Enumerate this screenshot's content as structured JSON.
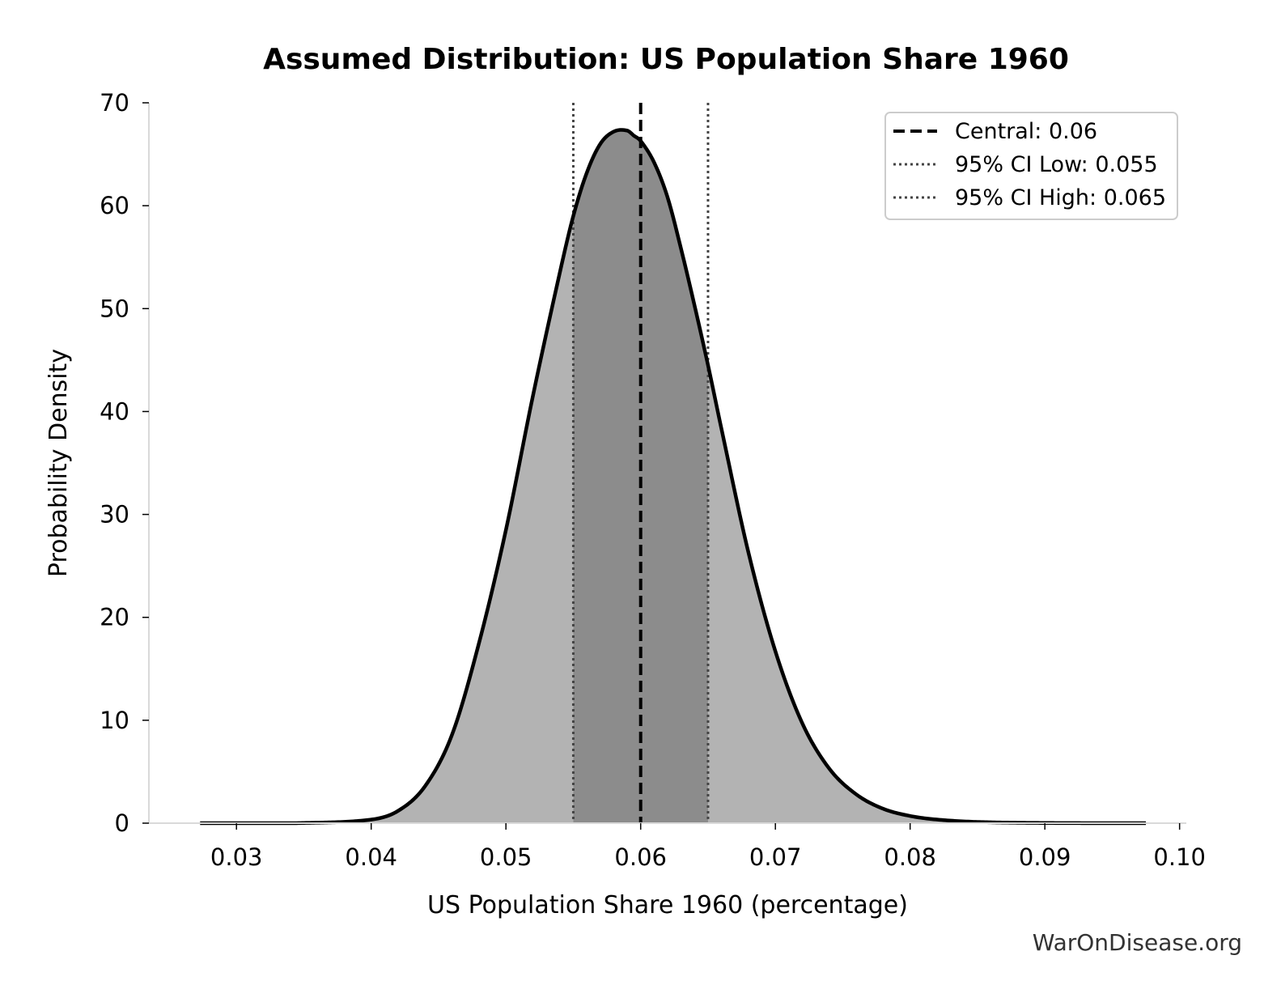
{
  "chart_data": {
    "type": "area",
    "title": "Assumed Distribution: US Population Share 1960",
    "xlabel": "US Population Share 1960 (percentage)",
    "ylabel": "Probability Density",
    "xlim": [
      0.0235,
      0.1005
    ],
    "ylim": [
      0,
      70
    ],
    "x_ticks": [
      "0.03",
      "0.04",
      "0.05",
      "0.06",
      "0.07",
      "0.08",
      "0.09",
      "0.10"
    ],
    "y_ticks": [
      "0",
      "10",
      "20",
      "30",
      "40",
      "50",
      "60",
      "70"
    ],
    "grid": false,
    "legend_position": "top-right",
    "series": [
      {
        "role": "density",
        "x": [
          0.0273,
          0.03,
          0.035,
          0.04,
          0.042,
          0.044,
          0.046,
          0.048,
          0.05,
          0.052,
          0.054,
          0.055,
          0.056,
          0.057,
          0.058,
          0.059,
          0.0595,
          0.06,
          0.061,
          0.062,
          0.063,
          0.064,
          0.065,
          0.066,
          0.068,
          0.07,
          0.072,
          0.074,
          0.076,
          0.078,
          0.08,
          0.082,
          0.085,
          0.09,
          0.0975
        ],
        "y": [
          0.0,
          0.0,
          0.02,
          0.35,
          1.2,
          3.6,
          8.6,
          17.5,
          28.5,
          41.5,
          53.5,
          59.0,
          63.2,
          66.0,
          67.2,
          67.3,
          66.8,
          66.3,
          64.2,
          60.8,
          55.8,
          50.3,
          44.5,
          38.3,
          26.3,
          16.7,
          9.7,
          5.3,
          2.8,
          1.4,
          0.7,
          0.35,
          0.12,
          0.02,
          0.0
        ]
      }
    ],
    "reference_lines": [
      {
        "name": "Central: 0.06",
        "x": 0.06,
        "style": "dashed",
        "color": "#000000"
      },
      {
        "name": "95% CI Low: 0.055",
        "x": 0.055,
        "style": "dotted",
        "color": "#444444"
      },
      {
        "name": "95% CI High: 0.065",
        "x": 0.065,
        "style": "dotted",
        "color": "#444444"
      }
    ],
    "shaded_interval": [
      0.055,
      0.065
    ],
    "colors": {
      "tail_fill": "#b3b3b3",
      "ci_fill": "#8c8c8c",
      "curve": "#000000"
    }
  },
  "watermark": "WarOnDisease.org"
}
